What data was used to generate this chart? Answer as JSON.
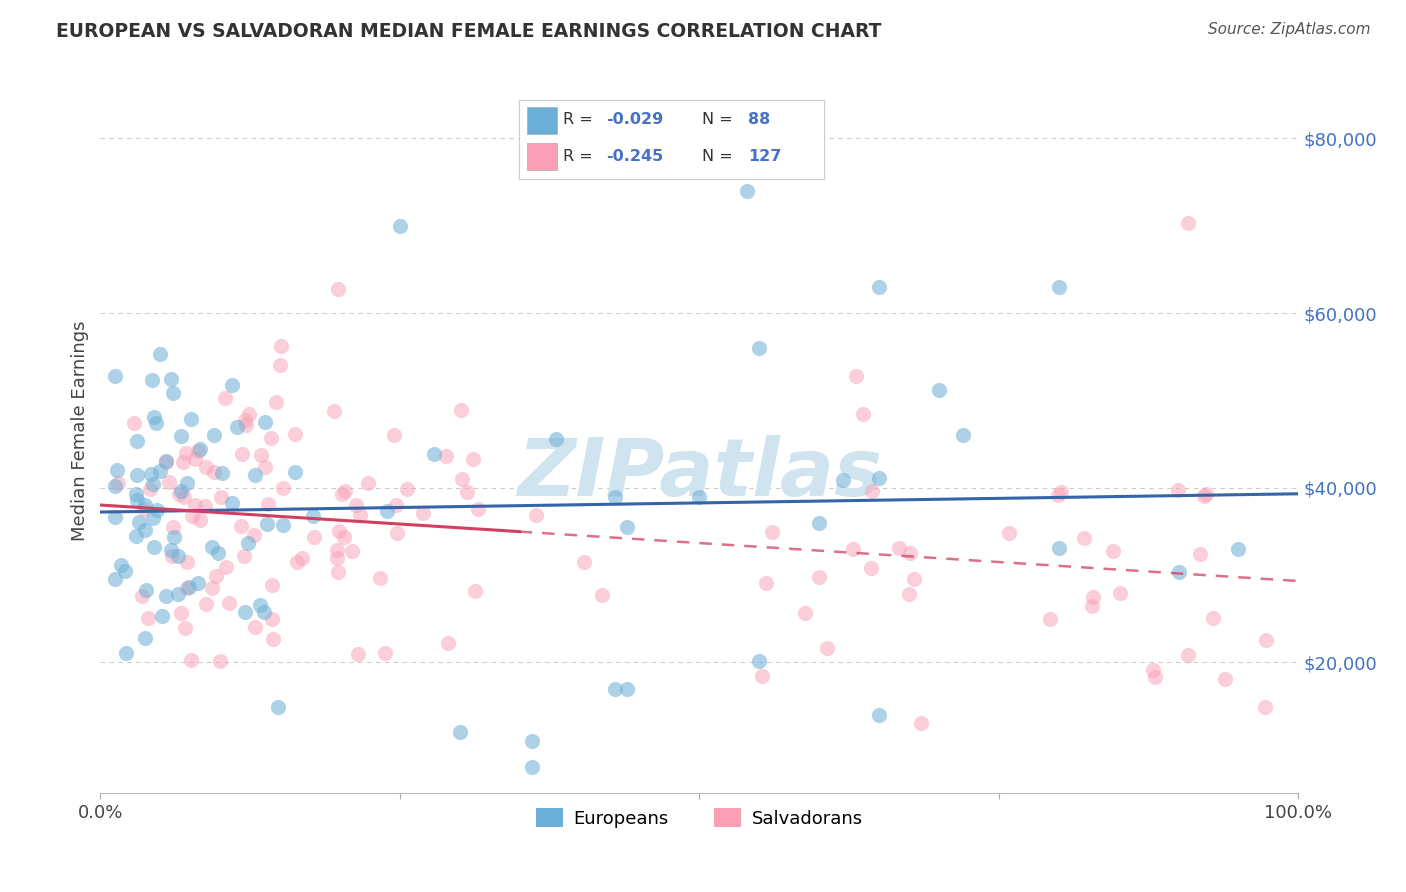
{
  "title": "EUROPEAN VS SALVADORAN MEDIAN FEMALE EARNINGS CORRELATION CHART",
  "source": "Source: ZipAtlas.com",
  "ylabel": "Median Female Earnings",
  "xlim": [
    0,
    1
  ],
  "ylim": [
    5000,
    88000
  ],
  "yticks": [
    20000,
    40000,
    60000,
    80000
  ],
  "ytick_labels": [
    "$20,000",
    "$40,000",
    "$60,000",
    "$80,000"
  ],
  "xticks": [
    0,
    0.25,
    0.5,
    0.75,
    1.0
  ],
  "xtick_labels": [
    "0.0%",
    "",
    "",
    "",
    "100.0%"
  ],
  "european_R": -0.029,
  "european_N": 88,
  "salvadoran_R": -0.245,
  "salvadoran_N": 127,
  "european_color": "#6baed6",
  "salvadoran_color": "#fa9fb5",
  "european_line_color": "#3465a8",
  "salvadoran_line_color": "#d04060",
  "background_color": "#ffffff",
  "grid_color": "#cccccc",
  "watermark_color": "#d0e4f0",
  "title_color": "#333333",
  "ytick_color": "#4472c4",
  "legend_text_color": "#333333",
  "legend_value_color": "#4472c4"
}
